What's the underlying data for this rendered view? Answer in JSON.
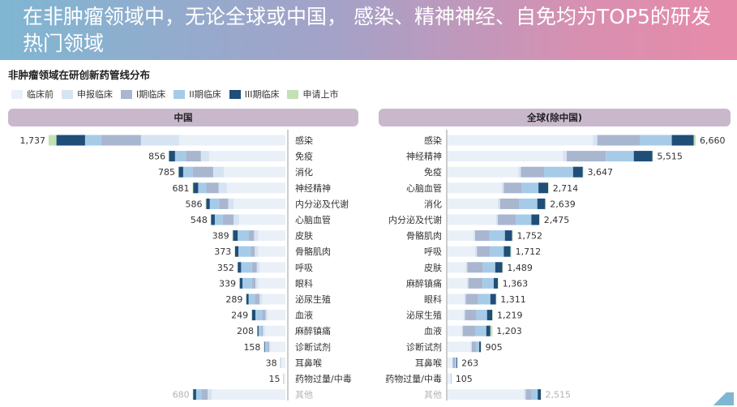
{
  "header": {
    "title": "在非肿瘤领域中，无论全球或中国，  感染、精神神经、自免均为TOP5的研发热门领域"
  },
  "subtitle": "非肿瘤领域在研创新药管线分布",
  "legend": [
    {
      "label": "临床前",
      "color": "#eaf0f8"
    },
    {
      "label": "申报临床",
      "color": "#d6e3f2"
    },
    {
      "label": "I期临床",
      "color": "#a9b6d0"
    },
    {
      "label": "II期临床",
      "color": "#a6cbe8"
    },
    {
      "label": "III期临床",
      "color": "#1f4e79"
    },
    {
      "label": "申请上市",
      "color": "#c4e0b4"
    }
  ],
  "panels": {
    "china_label": "中国",
    "global_label": "全球(除中国)"
  },
  "chart_data": [
    {
      "type": "bar",
      "orientation": "horizontal-stacked",
      "title": "中国",
      "direction": "extends-left",
      "stages": [
        "临床前",
        "申报临床",
        "I期临床",
        "II期临床",
        "III期临床",
        "申请上市"
      ],
      "categories": [
        "感染",
        "免疫",
        "消化",
        "神经精神",
        "内分泌及代谢",
        "心脑血管",
        "皮肤",
        "骨骼肌肉",
        "呼吸",
        "眼科",
        "泌尿生殖",
        "血液",
        "麻醉镇痛",
        "诊断试剂",
        "耳鼻喉",
        "药物过量/中毒",
        "其他"
      ],
      "totals": [
        1737,
        856,
        785,
        681,
        586,
        548,
        389,
        373,
        352,
        339,
        289,
        249,
        208,
        158,
        38,
        15,
        680
      ],
      "series": [
        {
          "name": "临床前",
          "values": [
            780,
            560,
            450,
            430,
            380,
            340,
            200,
            200,
            190,
            200,
            170,
            130,
            150,
            110,
            30,
            12,
            540
          ]
        },
        {
          "name": "申报临床",
          "values": [
            280,
            60,
            80,
            60,
            40,
            40,
            30,
            25,
            20,
            20,
            20,
            15,
            15,
            10,
            3,
            1,
            30
          ]
        },
        {
          "name": "I期临床",
          "values": [
            290,
            110,
            150,
            90,
            65,
            80,
            40,
            30,
            35,
            25,
            35,
            25,
            12,
            15,
            1,
            0,
            45
          ]
        },
        {
          "name": "II期临床",
          "values": [
            120,
            80,
            70,
            60,
            70,
            58,
            80,
            90,
            80,
            70,
            45,
            50,
            20,
            16,
            2,
            1,
            40
          ]
        },
        {
          "name": "III期临床",
          "values": [
            210,
            44,
            33,
            37,
            25,
            28,
            35,
            25,
            25,
            20,
            17,
            25,
            8,
            5,
            1,
            1,
            22
          ]
        },
        {
          "name": "申请上市",
          "values": [
            57,
            2,
            2,
            4,
            6,
            2,
            4,
            3,
            2,
            4,
            2,
            4,
            3,
            2,
            1,
            0,
            3
          ]
        }
      ],
      "label_colors": {
        "value": "#333333",
        "other": "#b3b3b3"
      }
    },
    {
      "type": "bar",
      "orientation": "horizontal-stacked",
      "title": "全球(除中国)",
      "direction": "extends-right",
      "stages": [
        "临床前",
        "申报临床",
        "I期临床",
        "II期临床",
        "III期临床",
        "申请上市"
      ],
      "categories": [
        "感染",
        "神经精神",
        "免疫",
        "心脑血管",
        "消化",
        "内分泌及代谢",
        "骨骼肌肉",
        "呼吸",
        "皮肤",
        "麻醉镇痛",
        "眼科",
        "泌尿生殖",
        "血液",
        "诊断试剂",
        "耳鼻喉",
        "药物过量/中毒",
        "其他"
      ],
      "totals": [
        6660,
        5515,
        3647,
        2714,
        2639,
        2475,
        1752,
        1712,
        1489,
        1363,
        1311,
        1219,
        1203,
        905,
        263,
        105,
        2515
      ],
      "series": [
        {
          "name": "临床前",
          "values": [
            3900,
            3100,
            1900,
            1450,
            1350,
            1300,
            700,
            740,
            490,
            520,
            450,
            430,
            380,
            620,
            130,
            85,
            2050
          ]
        },
        {
          "name": "申报临床",
          "values": [
            120,
            100,
            70,
            60,
            60,
            50,
            40,
            50,
            40,
            40,
            40,
            40,
            30,
            30,
            10,
            5,
            50
          ]
        },
        {
          "name": "I期临床",
          "values": [
            1150,
            1050,
            620,
            480,
            520,
            480,
            380,
            350,
            420,
            380,
            330,
            310,
            330,
            120,
            60,
            10,
            160
          ]
        },
        {
          "name": "II期临床",
          "values": [
            850,
            750,
            780,
            450,
            480,
            420,
            420,
            370,
            330,
            300,
            330,
            280,
            300,
            80,
            40,
            3,
            160
          ]
        },
        {
          "name": "III期临床",
          "values": [
            590,
            500,
            260,
            260,
            210,
            210,
            190,
            180,
            190,
            110,
            150,
            140,
            110,
            45,
            20,
            2,
            85
          ]
        },
        {
          "name": "申请上市",
          "values": [
            50,
            15,
            17,
            14,
            19,
            15,
            22,
            22,
            19,
            13,
            11,
            19,
            53,
            10,
            3,
            0,
            10
          ]
        }
      ],
      "label_colors": {
        "value": "#333333",
        "other": "#b3b3b3"
      }
    }
  ]
}
